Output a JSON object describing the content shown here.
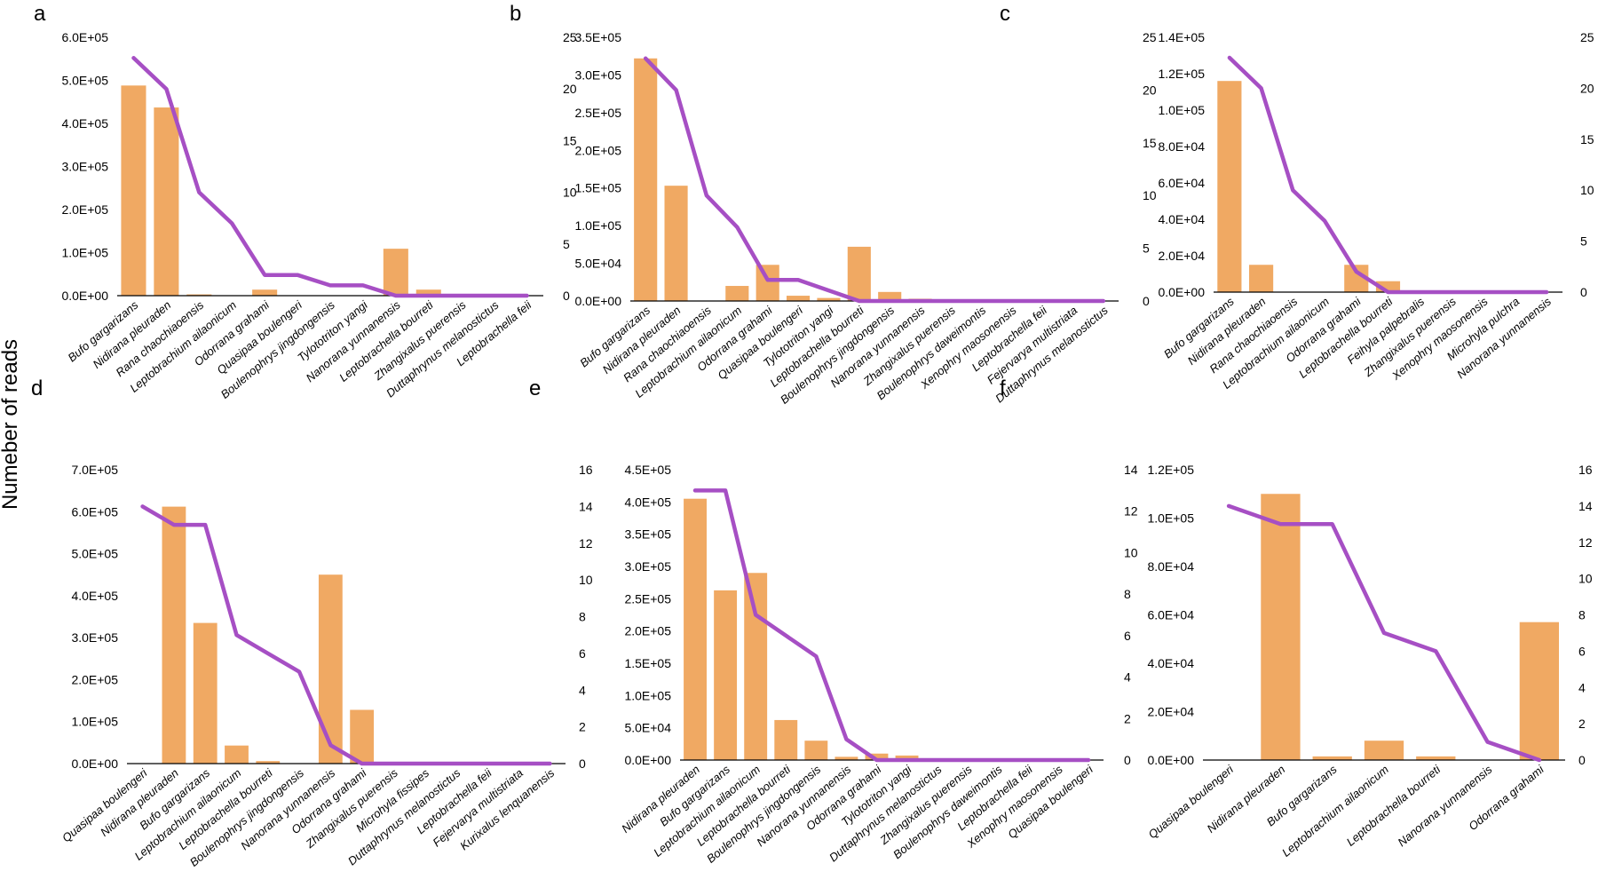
{
  "figure": {
    "ylabel": "Numeber of reads",
    "colors": {
      "bar": "#F0A963",
      "line": "#A64FC4",
      "axis": "#000000"
    }
  },
  "chart_data": [
    {
      "label": "a",
      "type": "bar",
      "categories": [
        "Bufo gargarizans",
        "Nidirana pleuraden",
        "Rana chaochiaoensis",
        "Leptobrachium ailaonicum",
        "Odorrana grahami",
        "Quasipaa boulengeri",
        "Boulenophrys jingdongensis",
        "Tylototriton yangi",
        "Nanorana yunnanensis",
        "Leptobrachella bourreti",
        "Zhangixalus puerensis",
        "Duttaphrynus melanostictus",
        "Leptobrachella feii"
      ],
      "series": [
        {
          "axis": "left",
          "type": "bar",
          "values": [
            488000,
            437000,
            3000,
            0,
            14000,
            0,
            0,
            0,
            109000,
            14000,
            0,
            0,
            0
          ]
        },
        {
          "axis": "right",
          "type": "line",
          "values": [
            23,
            20,
            10,
            7,
            2,
            2,
            1,
            1,
            0,
            0,
            0,
            0,
            0
          ]
        }
      ],
      "ylim": [
        0,
        600000
      ],
      "yticks": [
        "0.0E+00",
        "1.0E+05",
        "2.0E+05",
        "3.0E+05",
        "4.0E+05",
        "5.0E+05",
        "6.0E+05"
      ],
      "y2lim": [
        0,
        25
      ],
      "y2ticks": [
        "0",
        "5",
        "10",
        "15",
        "20",
        "25"
      ]
    },
    {
      "label": "b",
      "type": "bar",
      "categories": [
        "Bufo gargarizans",
        "Nidirana pleuraden",
        "Rana chaochiaoensis",
        "Leptobrachium ailaonicum",
        "Odorrana grahami",
        "Quasipaa boulengeri",
        "Tylototriton yangi",
        "Leptobrachella bourreti",
        "Boulenophrys jingdongensis",
        "Nanorana yunnanensis",
        "Zhangixalus puerensis",
        "Boulenophrys daweimontis",
        "Xenophry maosonensis",
        "Leptobrachella feii",
        "Fejervarya multistriata",
        "Duttaphrynus melanostictus"
      ],
      "series": [
        {
          "axis": "left",
          "type": "bar",
          "values": [
            322000,
            153000,
            0,
            20000,
            48000,
            7000,
            4000,
            72000,
            12000,
            3000,
            0,
            0,
            0,
            0,
            0,
            0
          ]
        },
        {
          "axis": "right",
          "type": "line",
          "values": [
            23,
            20,
            10,
            7,
            2,
            2,
            1,
            0,
            0,
            0,
            0,
            0,
            0,
            0,
            0,
            0
          ]
        }
      ],
      "ylim": [
        0,
        350000
      ],
      "yticks": [
        "0.0E+00",
        "5.0E+04",
        "1.0E+05",
        "1.5E+05",
        "2.0E+05",
        "2.5E+05",
        "3.0E+05",
        "3.5E+05"
      ],
      "y2lim": [
        0,
        25
      ],
      "y2ticks": [
        "0",
        "5",
        "10",
        "15",
        "20",
        "25"
      ]
    },
    {
      "label": "c",
      "type": "bar",
      "categories": [
        "Bufo gargarizans",
        "Nidirana pleuraden",
        "Rana chaochiaoensis",
        "Leptobrachium ailaonicum",
        "Odorrana grahami",
        "Leptobrachella bourreti",
        "Feihyla palpebralis",
        "Zhangixalus puerensis",
        "Xenophry maosonensis",
        "Microhyla pulchra",
        "Nanorana yunnanensis"
      ],
      "series": [
        {
          "axis": "left",
          "type": "bar",
          "values": [
            116000,
            15000,
            0,
            0,
            15000,
            6000,
            0,
            0,
            0,
            0,
            0
          ]
        },
        {
          "axis": "right",
          "type": "line",
          "values": [
            23,
            20,
            10,
            7,
            2,
            0,
            0,
            0,
            0,
            0,
            0
          ]
        }
      ],
      "ylim": [
        0,
        140000
      ],
      "yticks": [
        "0.0E+00",
        "2.0E+04",
        "4.0E+04",
        "6.0E+04",
        "8.0E+04",
        "1.0E+05",
        "1.2E+05",
        "1.4E+05"
      ],
      "y2lim": [
        0,
        25
      ],
      "y2ticks": [
        "0",
        "5",
        "10",
        "15",
        "20",
        "25"
      ]
    },
    {
      "label": "d",
      "type": "bar",
      "categories": [
        "Quasipaa boulengeri",
        "Nidirana pleuraden",
        "Bufo gargarizans",
        "Leptobrachium ailaonicum",
        "Leptobrachella bourreti",
        "Boulenophrys jingdongensis",
        "Nanorana yunnanensis",
        "Odorrana grahami",
        "Zhangixalus puerensis",
        "Microhyla fissipes",
        "Duttaphrynus melanostictus",
        "Leptobrachella feii",
        "Fejervarya multistriata",
        "Kurixalus lenquanensis"
      ],
      "series": [
        {
          "axis": "left",
          "type": "bar",
          "values": [
            0,
            612000,
            335000,
            43000,
            6000,
            0,
            450000,
            128000,
            0,
            0,
            0,
            0,
            0,
            0
          ]
        },
        {
          "axis": "right",
          "type": "line",
          "values": [
            14,
            13,
            13,
            7,
            6,
            5,
            1,
            0,
            0,
            0,
            0,
            0,
            0,
            0
          ]
        }
      ],
      "ylim": [
        0,
        700000
      ],
      "yticks": [
        "0.0E+00",
        "1.0E+05",
        "2.0E+05",
        "3.0E+05",
        "4.0E+05",
        "5.0E+05",
        "6.0E+05",
        "7.0E+05"
      ],
      "y2lim": [
        0,
        16
      ],
      "y2ticks": [
        "0",
        "2",
        "4",
        "6",
        "8",
        "10",
        "12",
        "14",
        "16"
      ]
    },
    {
      "label": "e",
      "type": "bar",
      "categories": [
        "Nidirana pleuraden",
        "Bufo gargarizans",
        "Leptobrachium ailaonicum",
        "Leptobrachella bourreti",
        "Boulenophrys jingdongensis",
        "Nanorana yunnanensis",
        "Odorrana grahami",
        "Tylototriton yangi",
        "Duttaphrynus melanostictus",
        "Zhangixalus puerensis",
        "Boulenophrys daweimontis",
        "Leptobrachella feii",
        "Xenophry maosonensis",
        "Quasipaa boulengeri"
      ],
      "series": [
        {
          "axis": "left",
          "type": "bar",
          "values": [
            405000,
            263000,
            290000,
            62000,
            30000,
            5000,
            10000,
            7000,
            2000,
            2000,
            0,
            0,
            0,
            0
          ]
        },
        {
          "axis": "right",
          "type": "line",
          "values": [
            13,
            13,
            7,
            6,
            5,
            1,
            0,
            0,
            0,
            0,
            0,
            0,
            0,
            0
          ]
        }
      ],
      "ylim": [
        0,
        450000
      ],
      "yticks": [
        "0.0E+00",
        "5.0E+04",
        "1.0E+05",
        "1.5E+05",
        "2.0E+05",
        "2.5E+05",
        "3.0E+05",
        "3.5E+05",
        "4.0E+05",
        "4.5E+05"
      ],
      "y2lim": [
        0,
        14
      ],
      "y2ticks": [
        "0",
        "2",
        "4",
        "6",
        "8",
        "10",
        "12",
        "14"
      ]
    },
    {
      "label": "f",
      "type": "bar",
      "categories": [
        "Quasipaa boulengeri",
        "Nidirana pleuraden",
        "Bufo gargarizans",
        "Leptobrachium ailaonicum",
        "Leptobrachella bourreti",
        "Nanorana yunnanensis",
        "Odorrana grahami"
      ],
      "series": [
        {
          "axis": "left",
          "type": "bar",
          "values": [
            0,
            110000,
            1500,
            8000,
            1500,
            0,
            57000
          ]
        },
        {
          "axis": "right",
          "type": "line",
          "values": [
            14,
            13,
            13,
            7,
            6,
            1,
            0
          ]
        }
      ],
      "ylim": [
        0,
        120000
      ],
      "yticks": [
        "0.0E+00",
        "2.0E+04",
        "4.0E+04",
        "6.0E+04",
        "8.0E+04",
        "1.0E+05",
        "1.2E+05"
      ],
      "y2lim": [
        0,
        16
      ],
      "y2ticks": [
        "0",
        "2",
        "4",
        "6",
        "8",
        "10",
        "12",
        "14",
        "16"
      ]
    }
  ]
}
